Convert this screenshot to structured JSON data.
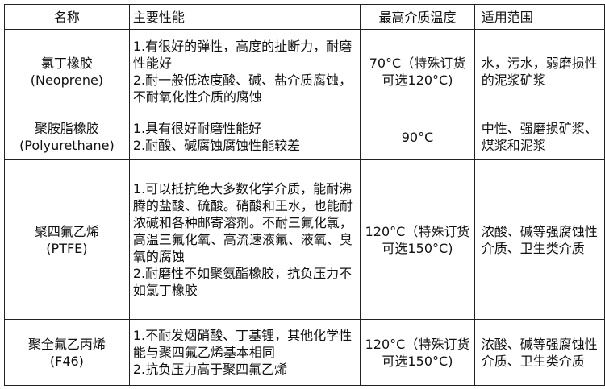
{
  "headers": [
    "名称",
    "主要性能",
    "最高介质温度",
    "适用范围"
  ],
  "rows": [
    {
      "name": "氯丁橡胶\n(Neoprene)",
      "performance": "1.有很好的弹性，高度的扯断力，耐磨性能好\n2.耐一般低浓度酸、碱、盐介质腐蚀，不耐氧化性介质的腐蚀",
      "temp": "70°C（特殊订货可选120°C)",
      "scope": "水，污水，弱磨损性的泥浆矿浆"
    },
    {
      "name": "聚胺脂橡胶\n(Polyurethane)",
      "performance": "1.具有很好耐磨性能好\n2.耐酸、碱腐蚀腐蚀性能较差",
      "temp": "90°C",
      "scope": "中性、强磨损矿浆、煤浆和泥浆"
    },
    {
      "name": "聚四氟乙烯\n(PTFE)",
      "performance": "1.可以抵抗绝大多数化学介质，能耐沸腾的盐酸、硫酸。硝酸和王水，也能耐浓碱和各种邮寄溶剂。不耐三氟化氯，高温三氟化氧、高流速液氟、液氧、臭氧的腐蚀\n2.耐磨性不如聚氨酯橡胶，抗负压力不如氯丁橡胶",
      "temp": "120°C（特殊订货可选150°C)",
      "scope": "浓酸、碱等强腐蚀性介质、卫生类介质"
    },
    {
      "name": "聚全氟乙丙烯\n(F46)",
      "performance": "1.不耐发烟硝酸、丁基锂，其他化学性能与聚四氟乙烯基本相同\n2.抗负压力高于聚四氟乙烯",
      "temp": "120°C（特殊订货可选150°C)",
      "scope": "浓酸、碱等强腐蚀性介质、卫生类介质"
    }
  ]
}
